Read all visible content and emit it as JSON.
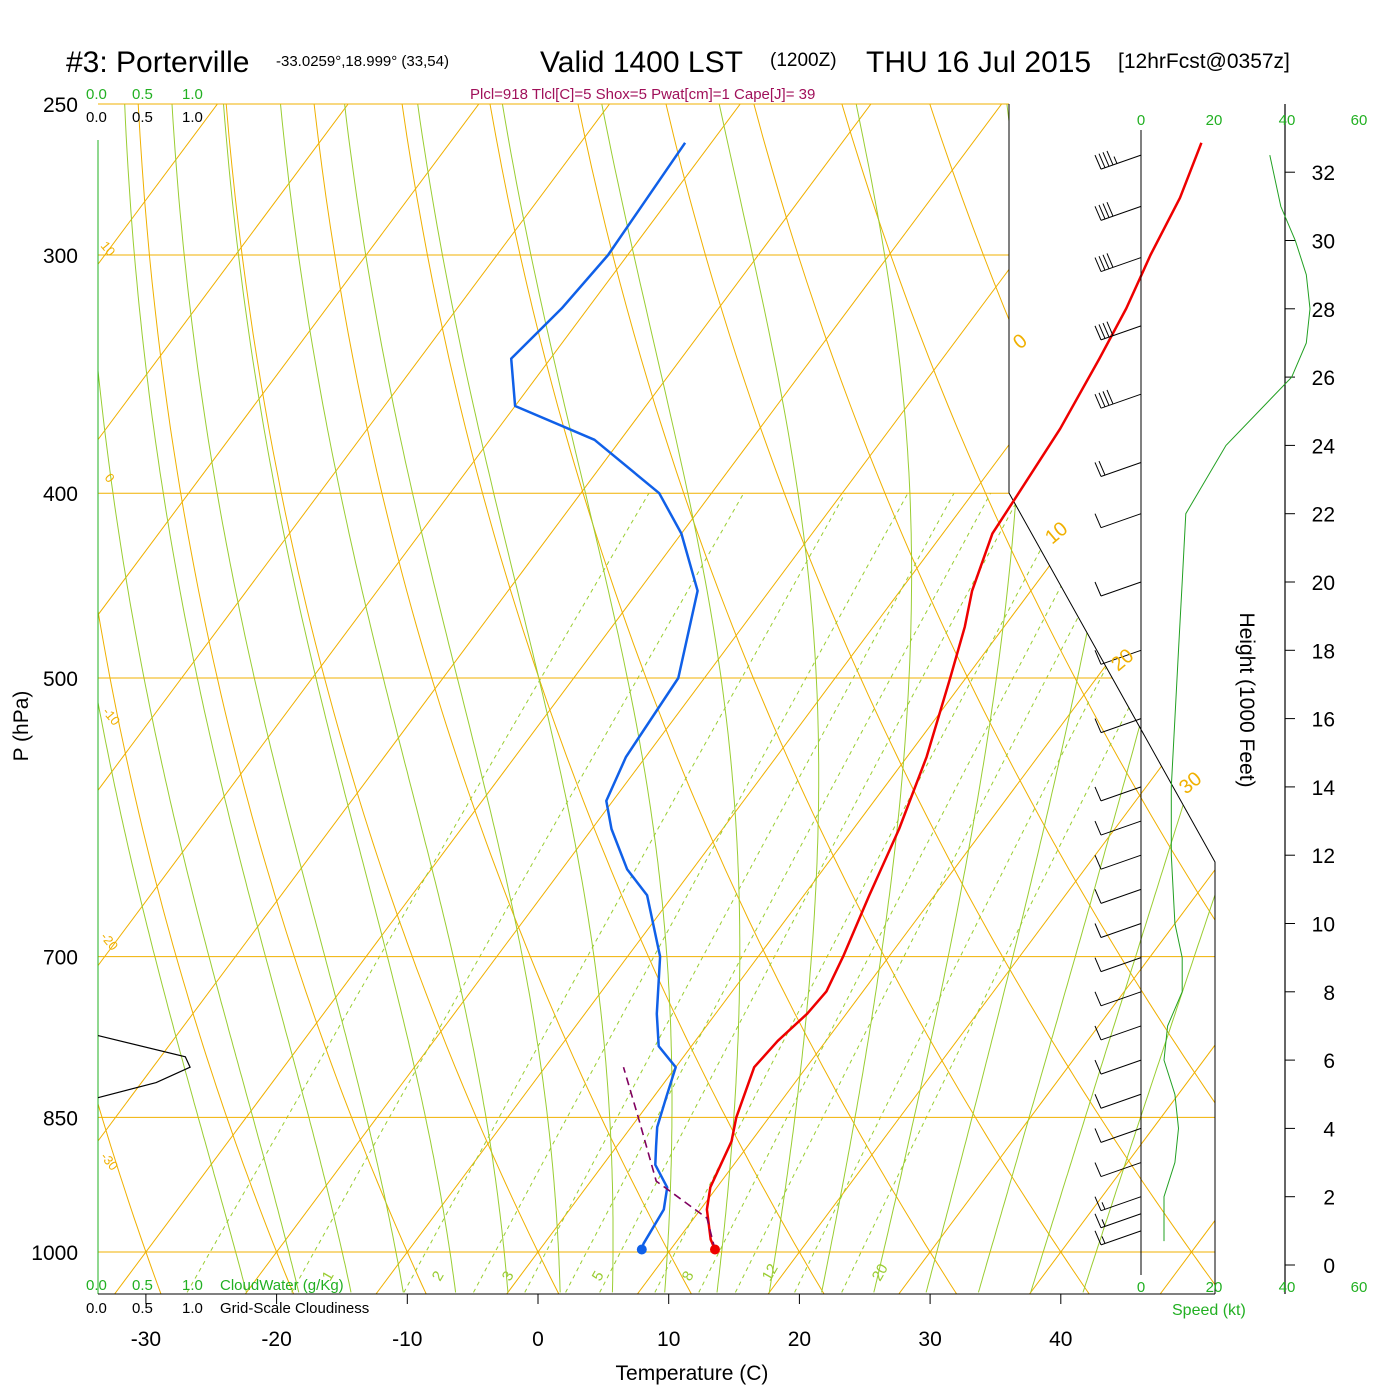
{
  "header": {
    "station": "#3: Porterville",
    "coords": "-33.0259°,18.999° (33,54)",
    "valid": "Valid 1400 LST",
    "utc": "(1200Z)",
    "date": "THU 16 Jul 2015",
    "forecast": "[12hrFcst@0357z]",
    "indices": "Plcl=918 Tlcl[C]=5 Shox=5 Pwat[cm]=1 Cape[J]= 39"
  },
  "colors": {
    "temperature": "#ee0000",
    "dewpoint": "#1060e8",
    "isotherm": "#f0b000",
    "dry_adiabat": "#9acd32",
    "mixing_ratio": "#9acd32",
    "parcel": "#800060",
    "speed": "#22a022"
  },
  "labels": {
    "pressure_axis": "P (hPa)",
    "temperature_axis": "Temperature (C)",
    "height_axis": "Height (1000 Feet)",
    "cloudwater": "CloudWater (g/Kg)",
    "cloudiness": "Grid-Scale Cloudiness",
    "speed": "Speed (kt)"
  },
  "cloud_scale": {
    "green_ticks": [
      "0.0",
      "0.5",
      "1.0"
    ],
    "black_ticks": [
      "0.0",
      "0.5",
      "1.0"
    ]
  },
  "chart_data": {
    "type": "line",
    "subtype": "skew-t log-p sounding",
    "x_axis": {
      "label": "Temperature (C)",
      "ticks": [
        -30,
        -20,
        -10,
        0,
        10,
        20,
        30,
        40
      ]
    },
    "y_axis": {
      "label": "P (hPa)",
      "ticks": [
        250,
        300,
        400,
        500,
        700,
        850,
        1000
      ],
      "scale": "log"
    },
    "height_axis": {
      "label": "Height (1000 Feet)",
      "ticks": [
        0,
        2,
        4,
        6,
        8,
        10,
        12,
        14,
        16,
        18,
        20,
        22,
        24,
        26,
        28,
        30,
        32
      ]
    },
    "speed_axis": {
      "label": "Speed (kt)",
      "ticks": [
        0,
        20,
        40,
        60
      ]
    },
    "isotherm_labels": [
      "10",
      "0",
      "-10",
      "-20",
      "-30"
    ],
    "isotherm_labels_right": [
      "0",
      "10",
      "20",
      "30"
    ],
    "mixing_ratio_labels": [
      "1",
      "2",
      "3",
      "5",
      "8",
      "12",
      "20"
    ],
    "series": [
      {
        "name": "Temperature",
        "points": [
          {
            "p": 997,
            "t": 13.4
          },
          {
            "p": 985,
            "t": 12.5
          },
          {
            "p": 950,
            "t": 10.5
          },
          {
            "p": 925,
            "t": 9.5
          },
          {
            "p": 900,
            "t": 9.0
          },
          {
            "p": 875,
            "t": 8.5
          },
          {
            "p": 850,
            "t": 7.5
          },
          {
            "p": 800,
            "t": 6.0
          },
          {
            "p": 775,
            "t": 6.3
          },
          {
            "p": 750,
            "t": 7.0
          },
          {
            "p": 730,
            "t": 7.2
          },
          {
            "p": 700,
            "t": 6.5
          },
          {
            "p": 650,
            "t": 5.0
          },
          {
            "p": 600,
            "t": 3.5
          },
          {
            "p": 550,
            "t": 1.5
          },
          {
            "p": 500,
            "t": -1.2
          },
          {
            "p": 470,
            "t": -3.0
          },
          {
            "p": 450,
            "t": -4.5
          },
          {
            "p": 420,
            "t": -6.2
          },
          {
            "p": 400,
            "t": -6.5
          },
          {
            "p": 370,
            "t": -7.0
          },
          {
            "p": 340,
            "t": -8.0
          },
          {
            "p": 320,
            "t": -8.8
          },
          {
            "p": 300,
            "t": -10.0
          },
          {
            "p": 280,
            "t": -11.0
          },
          {
            "p": 262,
            "t": -12.5
          }
        ]
      },
      {
        "name": "Dewpoint",
        "points": [
          {
            "p": 997,
            "t": 7.8
          },
          {
            "p": 990,
            "t": 7.6
          },
          {
            "p": 950,
            "t": 7.2
          },
          {
            "p": 925,
            "t": 6.2
          },
          {
            "p": 900,
            "t": 4.0
          },
          {
            "p": 880,
            "t": 3.0
          },
          {
            "p": 860,
            "t": 2.0
          },
          {
            "p": 830,
            "t": 1.0
          },
          {
            "p": 800,
            "t": 0.0
          },
          {
            "p": 780,
            "t": -2.5
          },
          {
            "p": 750,
            "t": -4.5
          },
          {
            "p": 700,
            "t": -7.5
          },
          {
            "p": 650,
            "t": -12.0
          },
          {
            "p": 630,
            "t": -15.0
          },
          {
            "p": 600,
            "t": -18.5
          },
          {
            "p": 580,
            "t": -20.5
          },
          {
            "p": 550,
            "t": -21.5
          },
          {
            "p": 500,
            "t": -22.0
          },
          {
            "p": 450,
            "t": -25.5
          },
          {
            "p": 420,
            "t": -30.0
          },
          {
            "p": 400,
            "t": -34.0
          },
          {
            "p": 375,
            "t": -42.0
          },
          {
            "p": 360,
            "t": -50.0
          },
          {
            "p": 340,
            "t": -53.0
          },
          {
            "p": 320,
            "t": -52.0
          },
          {
            "p": 300,
            "t": -51.5
          },
          {
            "p": 262,
            "t": -52.0
          }
        ]
      },
      {
        "name": "Parcel",
        "points": [
          {
            "p": 997,
            "t": 13.4
          },
          {
            "p": 960,
            "t": 11.0
          },
          {
            "p": 918,
            "t": 5.0
          },
          {
            "p": 850,
            "t": 0.0
          },
          {
            "p": 800,
            "t": -4.0
          }
        ]
      }
    ],
    "surface_markers": [
      {
        "name": "temperature",
        "p": 997,
        "t": 13.4
      },
      {
        "name": "dewpoint",
        "p": 997,
        "t": 7.8
      }
    ],
    "wind_speed_profile": [
      {
        "h": 0.7,
        "kt": 3
      },
      {
        "h": 2,
        "kt": 3
      },
      {
        "h": 3,
        "kt": 6
      },
      {
        "h": 4,
        "kt": 7
      },
      {
        "h": 5,
        "kt": 6
      },
      {
        "h": 6,
        "kt": 3
      },
      {
        "h": 7,
        "kt": 4
      },
      {
        "h": 8,
        "kt": 8
      },
      {
        "h": 9,
        "kt": 8
      },
      {
        "h": 10,
        "kt": 6
      },
      {
        "h": 12,
        "kt": 5
      },
      {
        "h": 14,
        "kt": 5
      },
      {
        "h": 16,
        "kt": 6
      },
      {
        "h": 18,
        "kt": 7
      },
      {
        "h": 20,
        "kt": 8
      },
      {
        "h": 22,
        "kt": 9
      },
      {
        "h": 24,
        "kt": 20
      },
      {
        "h": 26,
        "kt": 38
      },
      {
        "h": 27,
        "kt": 42
      },
      {
        "h": 28,
        "kt": 43
      },
      {
        "h": 29,
        "kt": 42
      },
      {
        "h": 30,
        "kt": 39
      },
      {
        "h": 31,
        "kt": 35
      },
      {
        "h": 32.5,
        "kt": 32
      }
    ],
    "cloudiness_profile": [
      {
        "p": 770,
        "frac": 0.0
      },
      {
        "p": 790,
        "frac": 0.9
      },
      {
        "p": 800,
        "frac": 0.95
      },
      {
        "p": 815,
        "frac": 0.6
      },
      {
        "p": 830,
        "frac": 0.0
      }
    ],
    "wind_barbs": [
      {
        "h": 1.0,
        "kt": 5
      },
      {
        "h": 1.5,
        "kt": 5
      },
      {
        "h": 2.0,
        "kt": 5
      },
      {
        "h": 3.0,
        "kt": 10
      },
      {
        "h": 4.0,
        "kt": 10
      },
      {
        "h": 5.0,
        "kt": 10
      },
      {
        "h": 6.0,
        "kt": 10
      },
      {
        "h": 7.0,
        "kt": 10
      },
      {
        "h": 8.0,
        "kt": 10
      },
      {
        "h": 9.0,
        "kt": 10
      },
      {
        "h": 10.0,
        "kt": 10
      },
      {
        "h": 11.0,
        "kt": 10
      },
      {
        "h": 12.0,
        "kt": 10
      },
      {
        "h": 13.0,
        "kt": 10
      },
      {
        "h": 14.0,
        "kt": 10
      },
      {
        "h": 16.0,
        "kt": 10
      },
      {
        "h": 18.0,
        "kt": 10
      },
      {
        "h": 20.0,
        "kt": 10
      },
      {
        "h": 22.0,
        "kt": 10
      },
      {
        "h": 23.5,
        "kt": 20
      },
      {
        "h": 25.5,
        "kt": 40
      },
      {
        "h": 27.5,
        "kt": 40
      },
      {
        "h": 29.5,
        "kt": 40
      },
      {
        "h": 31.0,
        "kt": 40
      },
      {
        "h": 32.5,
        "kt": 35
      }
    ]
  }
}
